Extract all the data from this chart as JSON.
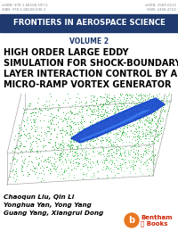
{
  "fig_width": 2.0,
  "fig_height": 2.59,
  "dpi": 100,
  "bg_color": "#ffffff",
  "top_bar_color": "#1e3a6e",
  "top_bar_text": "FRONTIERS IN AEROSPACE SCIENCE",
  "top_bar_text_color": "#ffffff",
  "volume_text": "VOLUME 2",
  "volume_color": "#1e3a6e",
  "title_line1": "HIGH ORDER LARGE EDDY",
  "title_line2": "SIMULATION FOR SHOCK-BOUNDARY",
  "title_line3": "LAYER INTERACTION CONTROL BY A",
  "title_line4": "MICRO-RAMP VORTEX GENERATOR",
  "title_color": "#000000",
  "author_line1": "Chaoqun Liu, Qin Li",
  "author_line2": "Yonghua Yan, Yong Yang",
  "author_line3": "Guang Yang, Xiangrui Dong",
  "authors_color": "#000000",
  "isbn_left_top": "eISBN: 978-1-68108-597-5",
  "isbn_left_bot": "ISBN: 978-1-68108-596-2",
  "isbn_right_top": "eISSN: 2589-0115",
  "isbn_right_bot": "ISSN: 2468-4724",
  "isbn_color": "#888888",
  "bentham_color": "#cc2200",
  "orange_color": "#e87722",
  "green_scatter": "#22aa33",
  "blue_surface": "#1144cc",
  "box_line_color": "#aaaaaa",
  "img_bg": "#ffffff"
}
